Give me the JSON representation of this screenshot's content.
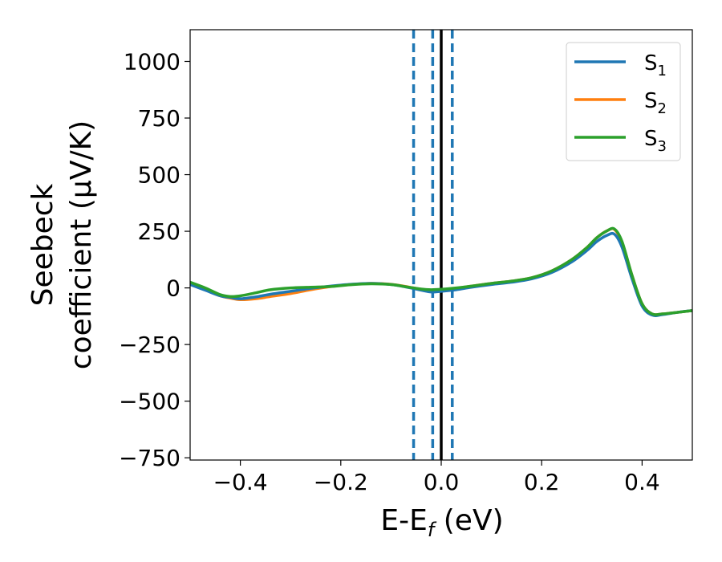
{
  "chart_data": {
    "type": "line",
    "xlabel_main": "E-E",
    "xlabel_sub": "f",
    "xlabel_unit": " (eV)",
    "ylabel_line1": "Seebeck",
    "ylabel_line2": "coefficient  (μV/K)",
    "xlim": [
      -0.5,
      0.5
    ],
    "ylim": [
      -760,
      1140
    ],
    "xticks": [
      -0.4,
      -0.2,
      0.0,
      0.2,
      0.4
    ],
    "xtick_labels": [
      "−0.4",
      "−0.2",
      "0.0",
      "0.2",
      "0.4"
    ],
    "yticks": [
      -750,
      -500,
      -250,
      0,
      250,
      500,
      750,
      1000
    ],
    "ytick_labels": [
      "−750",
      "−500",
      "−250",
      "0",
      "250",
      "500",
      "750",
      "1000"
    ],
    "grid": false,
    "legend_position": "top-right",
    "vlines": [
      {
        "x": -0.055,
        "style": "dashed",
        "color": "#1f77b4"
      },
      {
        "x": -0.017,
        "style": "dashed",
        "color": "#1f77b4"
      },
      {
        "x": 0.022,
        "style": "dashed",
        "color": "#1f77b4"
      },
      {
        "x": 0.0,
        "style": "solid",
        "color": "#000000"
      }
    ],
    "series": [
      {
        "name_main": "S",
        "name_sub": "1",
        "color": "#1f77b4",
        "x": [
          -0.5,
          -0.47,
          -0.44,
          -0.42,
          -0.4,
          -0.37,
          -0.34,
          -0.3,
          -0.26,
          -0.22,
          -0.18,
          -0.14,
          -0.1,
          -0.07,
          -0.04,
          -0.02,
          0.0,
          0.03,
          0.06,
          0.1,
          0.14,
          0.18,
          0.22,
          0.26,
          0.29,
          0.31,
          0.33,
          0.345,
          0.36,
          0.38,
          0.4,
          0.42,
          0.44,
          0.47,
          0.5
        ],
        "y": [
          15,
          -10,
          -35,
          -42,
          -48,
          -40,
          -28,
          -15,
          -2,
          8,
          16,
          20,
          15,
          4,
          -10,
          -18,
          -15,
          -8,
          3,
          15,
          25,
          40,
          68,
          115,
          165,
          205,
          232,
          237,
          180,
          40,
          -80,
          -120,
          -118,
          -108,
          -100
        ]
      },
      {
        "name_main": "S",
        "name_sub": "2",
        "color": "#ff7f0e",
        "x": [
          -0.5,
          -0.47,
          -0.44,
          -0.42,
          -0.4,
          -0.37,
          -0.34,
          -0.3,
          -0.26,
          -0.22,
          -0.18,
          -0.14,
          -0.1,
          -0.07,
          -0.04,
          -0.02,
          0.0,
          0.03,
          0.06,
          0.1,
          0.14,
          0.18,
          0.22,
          0.26,
          0.29,
          0.31,
          0.33,
          0.345,
          0.36,
          0.38,
          0.4,
          0.42,
          0.44,
          0.47,
          0.5
        ],
        "y": [
          20,
          -8,
          -35,
          -45,
          -52,
          -48,
          -38,
          -25,
          -8,
          6,
          15,
          20,
          16,
          6,
          -6,
          -10,
          -8,
          -2,
          8,
          20,
          30,
          45,
          75,
          125,
          178,
          222,
          252,
          258,
          200,
          55,
          -70,
          -115,
          -115,
          -108,
          -100
        ]
      },
      {
        "name_main": "S",
        "name_sub": "3",
        "color": "#2ca02c",
        "x": [
          -0.5,
          -0.47,
          -0.44,
          -0.42,
          -0.4,
          -0.37,
          -0.34,
          -0.3,
          -0.26,
          -0.22,
          -0.18,
          -0.14,
          -0.1,
          -0.07,
          -0.04,
          -0.02,
          0.0,
          0.03,
          0.06,
          0.1,
          0.14,
          0.18,
          0.22,
          0.26,
          0.29,
          0.31,
          0.33,
          0.345,
          0.36,
          0.38,
          0.4,
          0.42,
          0.44,
          0.47,
          0.5
        ],
        "y": [
          25,
          0,
          -30,
          -38,
          -35,
          -22,
          -8,
          0,
          3,
          6,
          14,
          18,
          15,
          5,
          -5,
          -8,
          -6,
          0,
          8,
          20,
          30,
          45,
          75,
          125,
          178,
          222,
          252,
          260,
          205,
          55,
          -70,
          -115,
          -115,
          -108,
          -100
        ]
      }
    ]
  }
}
